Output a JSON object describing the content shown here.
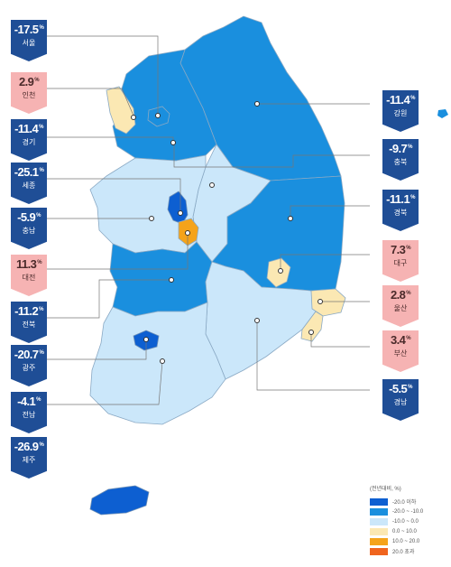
{
  "regions": {
    "seoul": {
      "name": "서울",
      "value": "-17.5",
      "unit": "%",
      "color": "#1a8fde"
    },
    "incheon": {
      "name": "인천",
      "value": "2.9",
      "unit": "%",
      "color": "#fbe8b3"
    },
    "gyeonggi": {
      "name": "경기",
      "value": "-11.4",
      "unit": "%",
      "color": "#1a8fde"
    },
    "sejong": {
      "name": "세종",
      "value": "-25.1",
      "unit": "%",
      "color": "#0d5fd1"
    },
    "chungnam": {
      "name": "충남",
      "value": "-5.9",
      "unit": "%",
      "color": "#cbe7fa"
    },
    "daejeon": {
      "name": "대전",
      "value": "11.3",
      "unit": "%",
      "color": "#f5a31a"
    },
    "jeonbuk": {
      "name": "전북",
      "value": "-11.2",
      "unit": "%",
      "color": "#1a8fde"
    },
    "gwangju": {
      "name": "광주",
      "value": "-20.7",
      "unit": "%",
      "color": "#0d5fd1"
    },
    "jeonnam": {
      "name": "전남",
      "value": "-4.1",
      "unit": "%",
      "color": "#cbe7fa"
    },
    "jeju": {
      "name": "제주",
      "value": "-26.9",
      "unit": "%",
      "color": "#0d5fd1"
    },
    "gangwon": {
      "name": "강원",
      "value": "-11.4",
      "unit": "%",
      "color": "#1a8fde"
    },
    "chungbuk": {
      "name": "충북",
      "value": "-9.7",
      "unit": "%",
      "color": "#cbe7fa"
    },
    "gyeongbuk": {
      "name": "경북",
      "value": "-11.1",
      "unit": "%",
      "color": "#1a8fde"
    },
    "daegu": {
      "name": "대구",
      "value": "7.3",
      "unit": "%",
      "color": "#fbe8b3"
    },
    "ulsan": {
      "name": "울산",
      "value": "2.8",
      "unit": "%",
      "color": "#fbe8b3"
    },
    "busan": {
      "name": "부산",
      "value": "3.4",
      "unit": "%",
      "color": "#fbe8b3"
    },
    "gyeongnam": {
      "name": "경남",
      "value": "-5.5",
      "unit": "%",
      "color": "#cbe7fa"
    }
  },
  "legend": {
    "title": "(전년대비, %)",
    "items": [
      {
        "label": "-20.0 이하",
        "color": "#0d5fd1"
      },
      {
        "label": "-20.0 ~ -10.0",
        "color": "#1a8fde"
      },
      {
        "label": "-10.0 ~ 0.0",
        "color": "#cbe7fa"
      },
      {
        "label": "0.0 ~ 10.0",
        "color": "#fbe8b3"
      },
      {
        "label": "10.0 ~ 20.0",
        "color": "#f5a31a"
      },
      {
        "label": "20.0 초과",
        "color": "#f0641e"
      }
    ]
  }
}
